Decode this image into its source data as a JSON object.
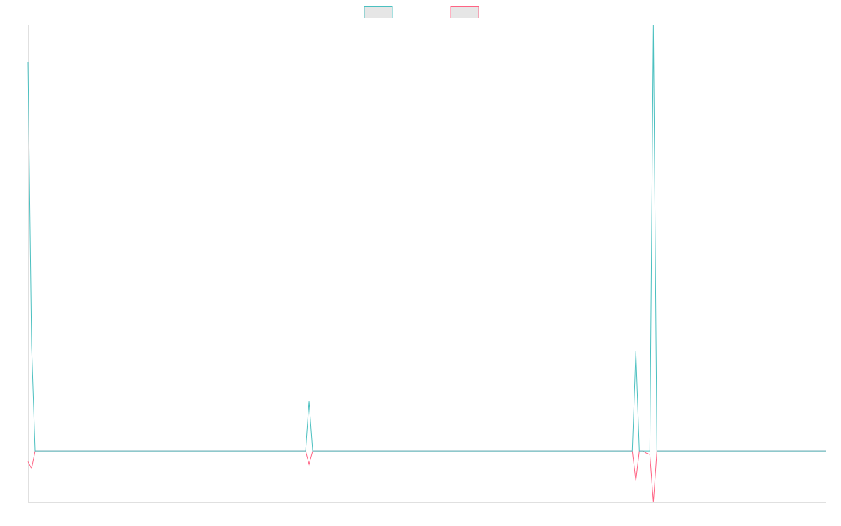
{
  "chart_data": {
    "type": "line",
    "categories": [
      null,
      null,
      null,
      null,
      null,
      null,
      null,
      null,
      null,
      null,
      null,
      null,
      null,
      null,
      null,
      null,
      null,
      null,
      null,
      null,
      null,
      null,
      null,
      null,
      null,
      null,
      null,
      null,
      null,
      null,
      null,
      null,
      null,
      null,
      null,
      null,
      null,
      null,
      null,
      null,
      null,
      null,
      null,
      null,
      null,
      null,
      null,
      null,
      null,
      null,
      null,
      null,
      null,
      null,
      null,
      null,
      null,
      null,
      null,
      null,
      null,
      null,
      null,
      null,
      null,
      null,
      null,
      null,
      null,
      null,
      null,
      null,
      null,
      null,
      null,
      null,
      null,
      null,
      null,
      null,
      null,
      null,
      null,
      null,
      null,
      null,
      null,
      null,
      null,
      null,
      null,
      null,
      null,
      null,
      null,
      null,
      null,
      null,
      null,
      null,
      null,
      null,
      null,
      null,
      null,
      null,
      null,
      null,
      null,
      null,
      null,
      null,
      null,
      null,
      null,
      null,
      null,
      null,
      null,
      null,
      null,
      null,
      null,
      null,
      null,
      null,
      null,
      null,
      null,
      null,
      null,
      null,
      null,
      null,
      null,
      null,
      null,
      null,
      null,
      null,
      null,
      null,
      null,
      null,
      null,
      null,
      null,
      null,
      null,
      null,
      null,
      null,
      null,
      null,
      null,
      null,
      null,
      null,
      null,
      null,
      null,
      null,
      null,
      null,
      null,
      null,
      null,
      null,
      null,
      null,
      null,
      null,
      null,
      null,
      null,
      null,
      null,
      null,
      null,
      null,
      null,
      null,
      null,
      null,
      null,
      null,
      null,
      null,
      null,
      null,
      null,
      null,
      null,
      null,
      null,
      null,
      null,
      null,
      null,
      null,
      null,
      null,
      null,
      null,
      null,
      null,
      null,
      null,
      null,
      null,
      null,
      null,
      null,
      null,
      null,
      null,
      null,
      null,
      null,
      null,
      null,
      null,
      null,
      null,
      null,
      null,
      null,
      null
    ],
    "series": [
      {
        "color": "#4bc0c0",
        "values": [
          91.4,
          24.7,
          0,
          0,
          0,
          0,
          0,
          0,
          0,
          0,
          0,
          0,
          0,
          0,
          0,
          0,
          0,
          0,
          0,
          0,
          0,
          0,
          0,
          0,
          0,
          0,
          0,
          0,
          0,
          0,
          0,
          0,
          0,
          0,
          0,
          0,
          0,
          0,
          0,
          0,
          0,
          0,
          0,
          0,
          0,
          0,
          0,
          0,
          0,
          0,
          0,
          0,
          0,
          0,
          0,
          0,
          0,
          0,
          0,
          0,
          0,
          0,
          0,
          0,
          0,
          0,
          0,
          0,
          0,
          0,
          0,
          0,
          0,
          0,
          0,
          0,
          0,
          0,
          0,
          0,
          11.7,
          0,
          0,
          0,
          0,
          0,
          0,
          0,
          0,
          0,
          0,
          0,
          0,
          0,
          0,
          0,
          0,
          0,
          0,
          0,
          0,
          0,
          0,
          0,
          0,
          0,
          0,
          0,
          0,
          0,
          0,
          0,
          0,
          0,
          0,
          0,
          0,
          0,
          0,
          0,
          0,
          0,
          0,
          0,
          0,
          0,
          0,
          0,
          0,
          0,
          0,
          0,
          0,
          0,
          0,
          0,
          0,
          0,
          0,
          0,
          0,
          0,
          0,
          0,
          0,
          0,
          0,
          0,
          0,
          0,
          0,
          0,
          0,
          0,
          0,
          0,
          0,
          0,
          0,
          0,
          0,
          0,
          0,
          0,
          0,
          0,
          0,
          0,
          0,
          0,
          0,
          0,
          0,
          23.5,
          0,
          0,
          0,
          0,
          100,
          0,
          0,
          0,
          0,
          0,
          0,
          0,
          0,
          0,
          0,
          0,
          0,
          0,
          0,
          0,
          0,
          0,
          0,
          0,
          0,
          0,
          0,
          0,
          0,
          0,
          0,
          0,
          0,
          0,
          0,
          0,
          0,
          0,
          0,
          0,
          0,
          0,
          0,
          0,
          0,
          0,
          0,
          0,
          0,
          0,
          0,
          0,
          0,
          0
        ]
      },
      {
        "color": "#ff6384",
        "values": [
          -2.5,
          -4.1,
          0,
          0,
          0,
          0,
          0,
          0,
          0,
          0,
          0,
          0,
          0,
          0,
          0,
          0,
          0,
          0,
          0,
          0,
          0,
          0,
          0,
          0,
          0,
          0,
          0,
          0,
          0,
          0,
          0,
          0,
          0,
          0,
          0,
          0,
          0,
          0,
          0,
          0,
          0,
          0,
          0,
          0,
          0,
          0,
          0,
          0,
          0,
          0,
          0,
          0,
          0,
          0,
          0,
          0,
          0,
          0,
          0,
          0,
          0,
          0,
          0,
          0,
          0,
          0,
          0,
          0,
          0,
          0,
          0,
          0,
          0,
          0,
          0,
          0,
          0,
          0,
          0,
          0,
          -3.1,
          0,
          0,
          0,
          0,
          0,
          0,
          0,
          0,
          0,
          0,
          0,
          0,
          0,
          0,
          0,
          0,
          0,
          0,
          0,
          0,
          0,
          0,
          0,
          0,
          0,
          0,
          0,
          0,
          0,
          0,
          0,
          0,
          0,
          0,
          0,
          0,
          0,
          0,
          0,
          0,
          0,
          0,
          0,
          0,
          0,
          0,
          0,
          0,
          0,
          0,
          0,
          0,
          0,
          0,
          0,
          0,
          0,
          0,
          0,
          0,
          0,
          0,
          0,
          0,
          0,
          0,
          0,
          0,
          0,
          0,
          0,
          0,
          0,
          0,
          0,
          0,
          0,
          0,
          0,
          0,
          0,
          0,
          0,
          0,
          0,
          0,
          0,
          0,
          0,
          0,
          0,
          0,
          -7,
          0,
          0,
          -0.5,
          -0.8,
          -12,
          0,
          0,
          0,
          0,
          0,
          0,
          0,
          0,
          0,
          0,
          0,
          0,
          0,
          0,
          0,
          0,
          0,
          0,
          0,
          0,
          0,
          0,
          0,
          0,
          0,
          0,
          0,
          0,
          0,
          0,
          0,
          0,
          0,
          0,
          0,
          0,
          0,
          0,
          0,
          0,
          0,
          0,
          0,
          0,
          0,
          0,
          0,
          0,
          0
        ]
      }
    ],
    "ylim": [
      -12,
      100
    ],
    "legend": "top"
  }
}
